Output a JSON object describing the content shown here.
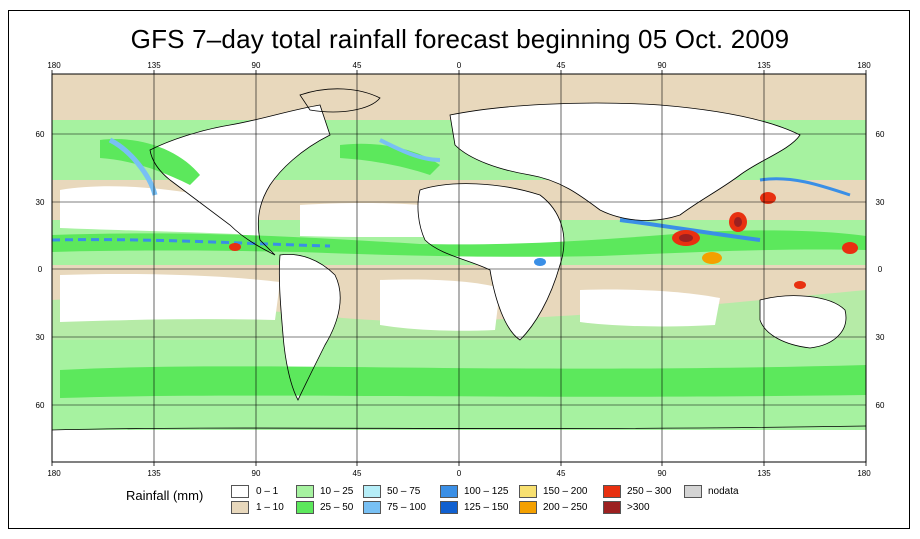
{
  "title": "GFS 7–day total rainfall forecast beginning 05 Oct. 2009",
  "axes": {
    "top_lon_labels": [
      "180",
      "135",
      "90",
      "45",
      "0",
      "45",
      "90",
      "135",
      "180"
    ],
    "bottom_lon_labels": [
      "180",
      "135",
      "90",
      "45",
      "0",
      "45",
      "90",
      "135",
      "180"
    ],
    "left_lat_labels": [
      "60",
      "30",
      "0",
      "30",
      "60"
    ],
    "right_lat_labels": [
      "60",
      "30",
      "0",
      "30",
      "60"
    ]
  },
  "legend": {
    "title": "Rainfall (mm)",
    "items": [
      {
        "label": "0 – 1",
        "color": "#ffffff"
      },
      {
        "label": "1 – 10",
        "color": "#e8d8bc"
      },
      {
        "label": "10 – 25",
        "color": "#a6f2a0"
      },
      {
        "label": "25 – 50",
        "color": "#5ce85c"
      },
      {
        "label": "50 – 75",
        "color": "#b6eef8"
      },
      {
        "label": "75 – 100",
        "color": "#78c0f4"
      },
      {
        "label": "100 – 125",
        "color": "#3a8fe6"
      },
      {
        "label": "125 – 150",
        "color": "#1060d0"
      },
      {
        "label": "150 – 200",
        "color": "#f8e070"
      },
      {
        "label": "200 – 250",
        "color": "#f4a000"
      },
      {
        "label": "250 – 300",
        "color": "#e83010"
      },
      {
        "label": ">300",
        "color": "#9c2020"
      },
      {
        "label": "nodata",
        "color": "#d4d4d4"
      }
    ]
  },
  "colors": {
    "ocean_dry": "#e8d8bc",
    "land_dry": "#ffffff",
    "light_rain": "#a6f2a0",
    "moderate_rain": "#5ce85c",
    "heavy_rain": "#78c0f4",
    "very_heavy": "#e83010",
    "extreme": "#9c2020",
    "coastline": "#000000"
  }
}
